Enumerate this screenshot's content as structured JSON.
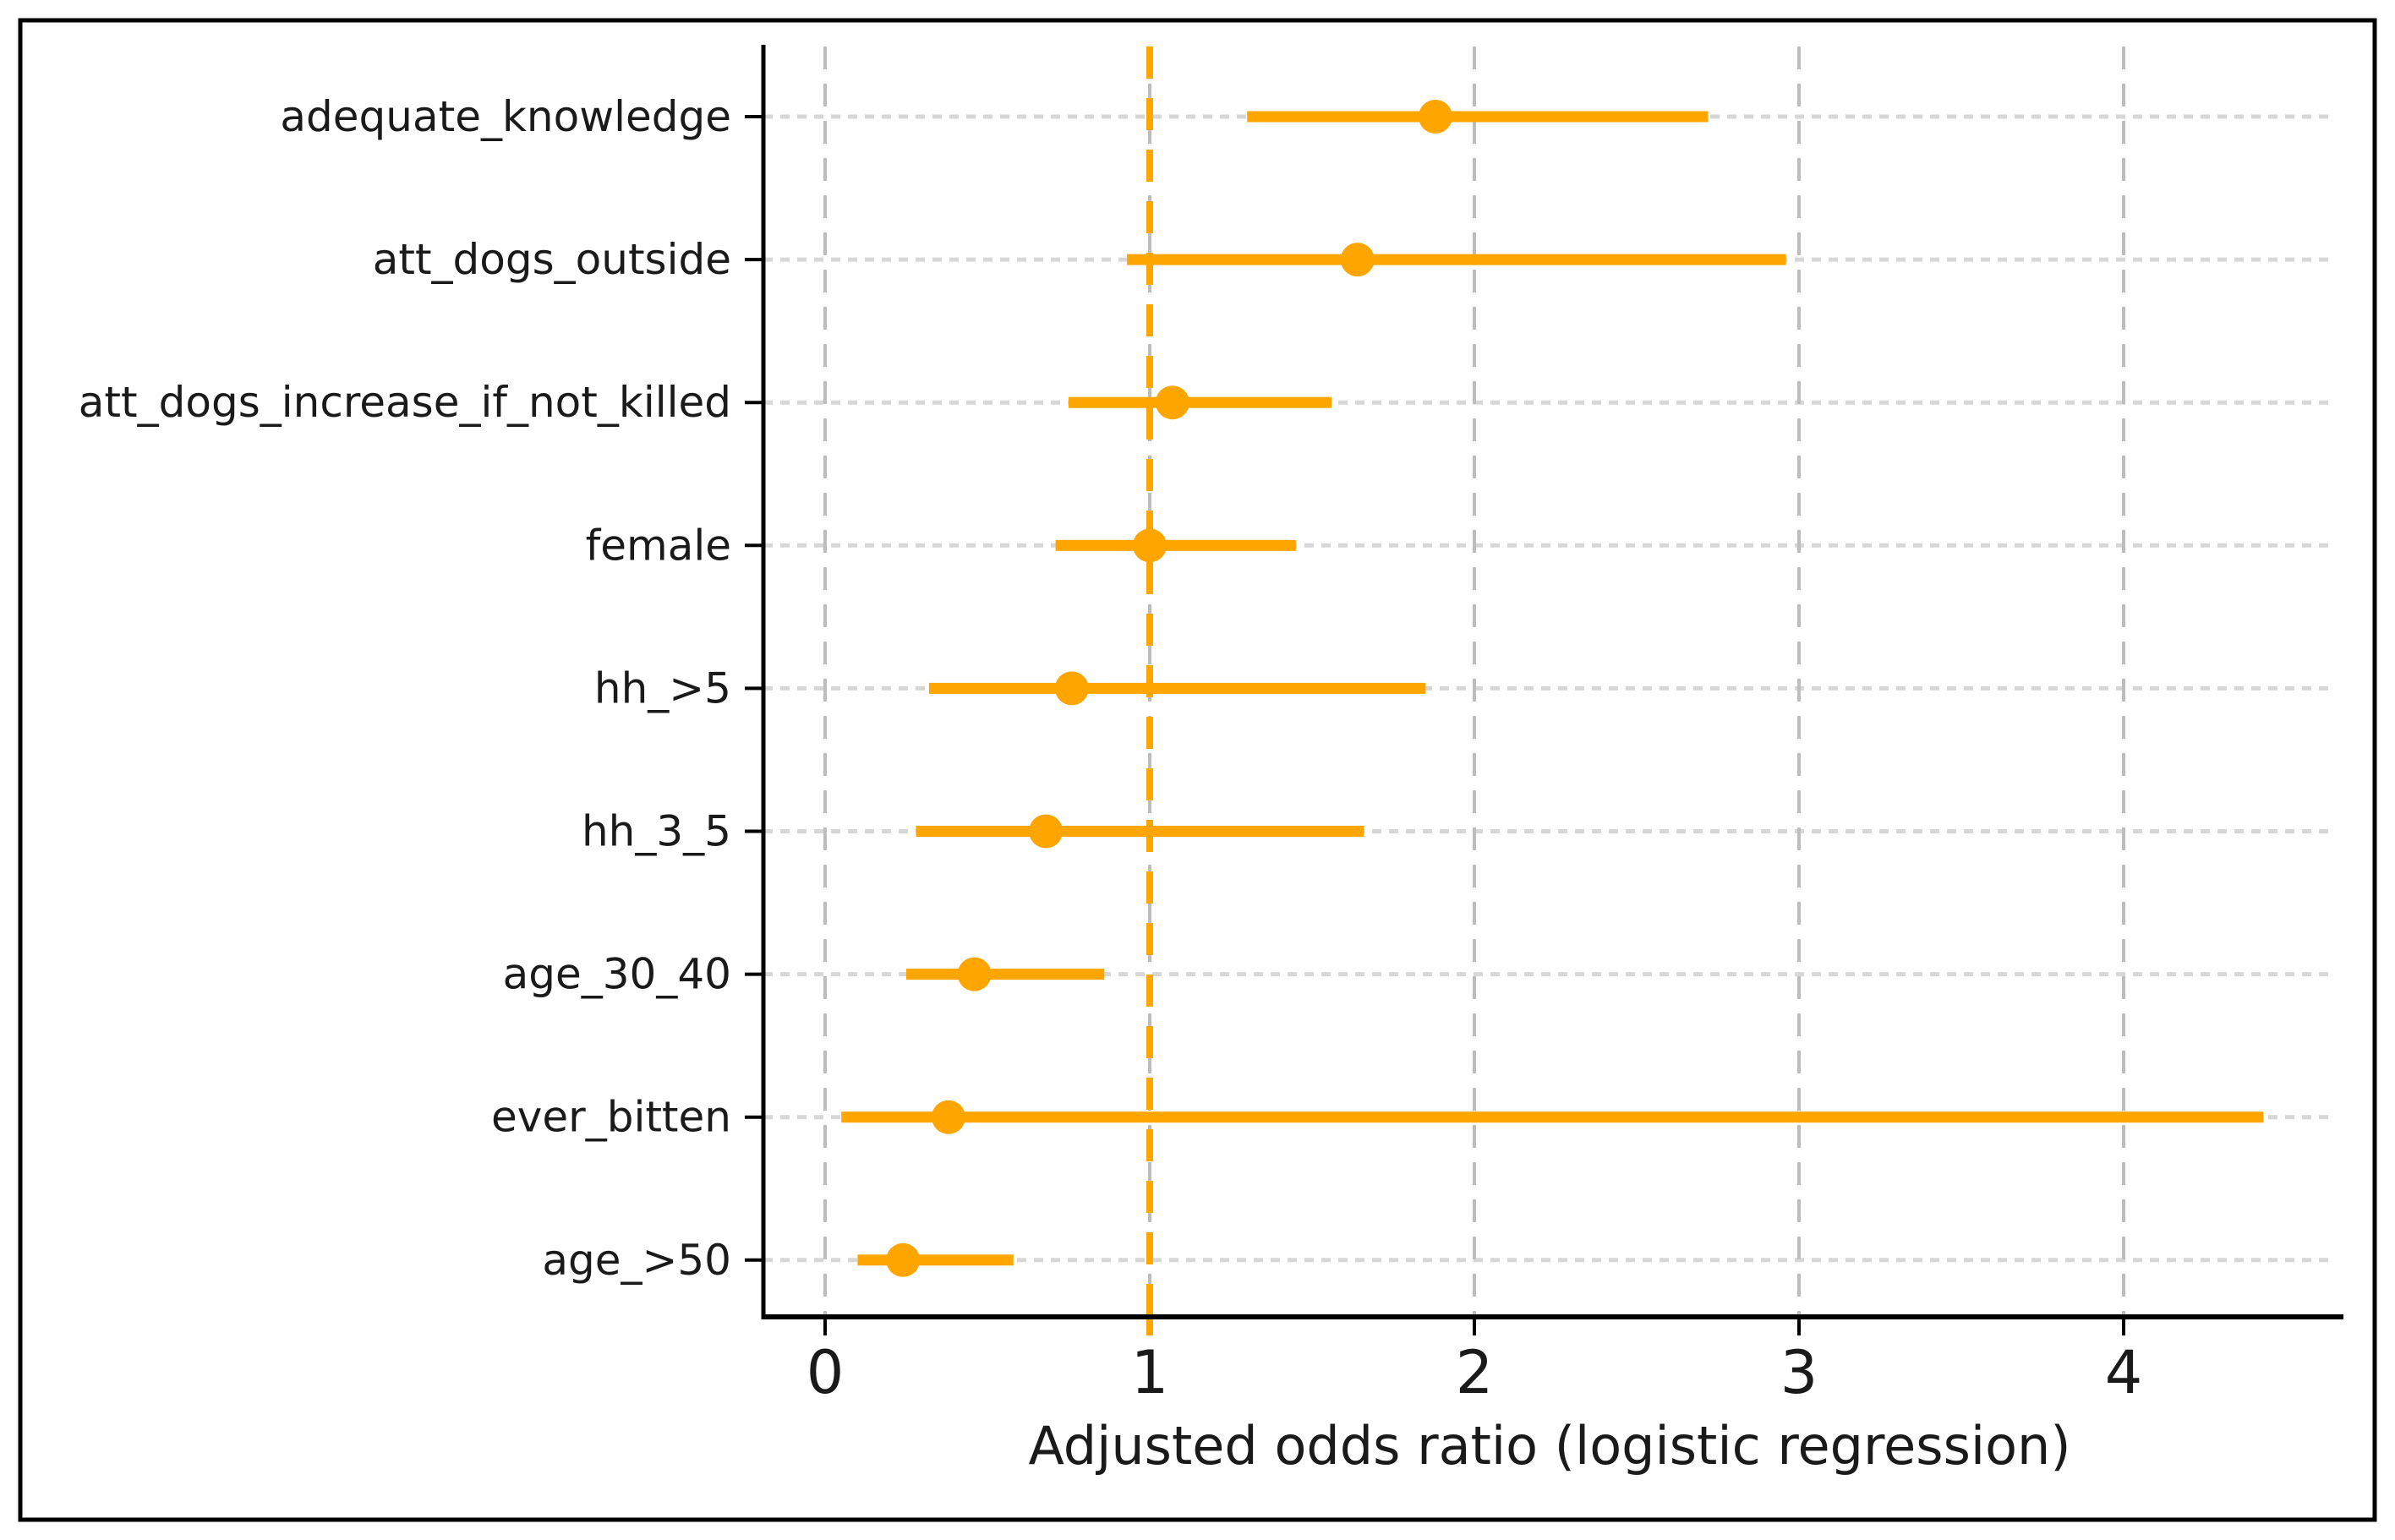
{
  "figure": {
    "background": "#ffffff",
    "border_color": "#000000"
  },
  "chart_data": {
    "type": "scatter",
    "subtype": "horizontal-forest-plot-with-error-bars",
    "title": "",
    "xlabel": "Adjusted odds ratio (logistic regression)",
    "ylabel": "",
    "xticks": [
      0,
      1,
      2,
      3,
      4
    ],
    "xtick_labels": [
      "0",
      "1",
      "2",
      "3",
      "4"
    ],
    "xlim": [
      -0.19,
      4.65
    ],
    "grid": true,
    "legend": false,
    "reference_line_x": 1,
    "categories": [
      "adequate_knowledge",
      "att_dogs_outside",
      "att_dogs_increase_if_not_killed",
      "female",
      "hh_>5",
      "hh_3_5",
      "age_30_40",
      "ever_bitten",
      "age_>50"
    ],
    "series": [
      {
        "name": "adjusted_odds_ratio",
        "points": [
          {
            "label": "adequate_knowledge",
            "or": 1.88,
            "ci_low": 1.3,
            "ci_high": 2.72
          },
          {
            "label": "att_dogs_outside",
            "or": 1.64,
            "ci_low": 0.93,
            "ci_high": 2.96
          },
          {
            "label": "att_dogs_increase_if_not_killed",
            "or": 1.07,
            "ci_low": 0.75,
            "ci_high": 1.56
          },
          {
            "label": "female",
            "or": 1.0,
            "ci_low": 0.71,
            "ci_high": 1.45
          },
          {
            "label": "hh_>5",
            "or": 0.76,
            "ci_low": 0.32,
            "ci_high": 1.85
          },
          {
            "label": "hh_3_5",
            "or": 0.68,
            "ci_low": 0.28,
            "ci_high": 1.66
          },
          {
            "label": "age_30_40",
            "or": 0.46,
            "ci_low": 0.25,
            "ci_high": 0.86
          },
          {
            "label": "ever_bitten",
            "or": 0.38,
            "ci_low": 0.05,
            "ci_high": 4.43
          },
          {
            "label": "age_>50",
            "or": 0.24,
            "ci_low": 0.1,
            "ci_high": 0.58
          }
        ]
      }
    ],
    "colors": {
      "marker": "#FFA500",
      "error_bar": "#FFA500",
      "reference_line": "#FFA500",
      "grid_horizontal": "#d7d7d7",
      "grid_vertical": "#bdbdbd",
      "axis": "#000000",
      "text": "#1a1a1a"
    }
  }
}
